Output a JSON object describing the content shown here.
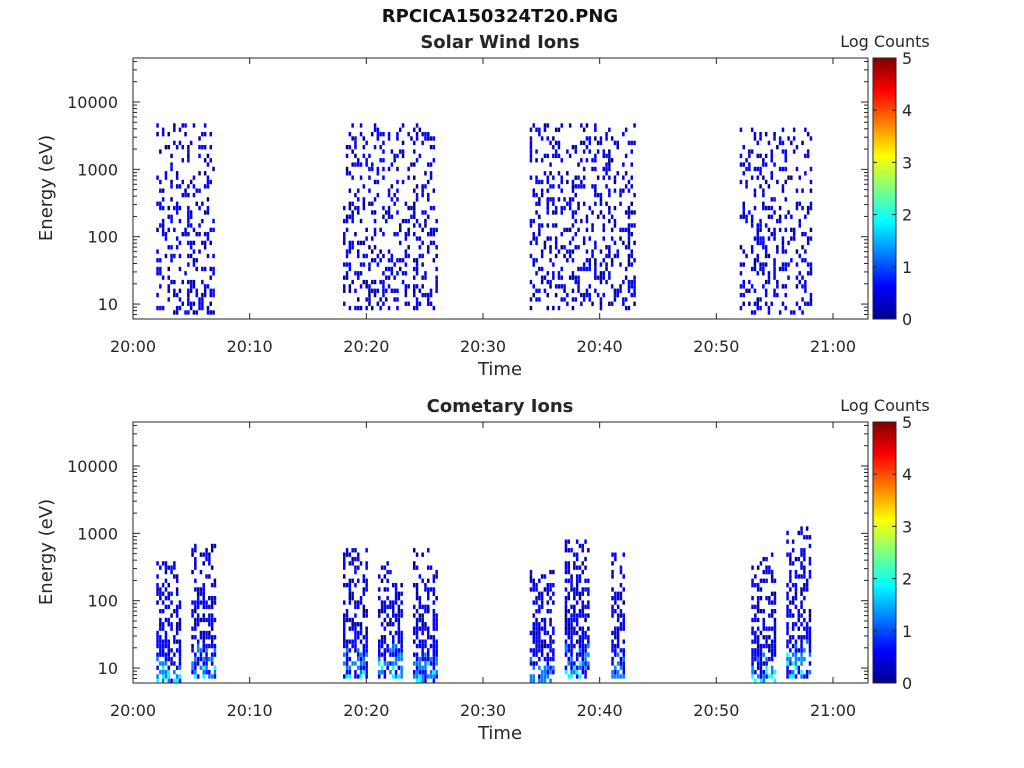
{
  "figure": {
    "title": "RPCICA150324T20.PNG"
  },
  "colormap": [
    "#00008f",
    "#0000ff",
    "#0080ff",
    "#00ffff",
    "#80ff80",
    "#ffff00",
    "#ff8000",
    "#ff0000",
    "#800000"
  ],
  "chart_data": [
    {
      "type": "heatmap",
      "title": "Solar Wind Ions",
      "xlabel": "Time",
      "ylabel": "Energy (eV)",
      "yscale": "log",
      "xlim": [
        "20:00",
        "21:03"
      ],
      "ylim": [
        6,
        45000
      ],
      "xticks": [
        "20:00",
        "20:10",
        "20:20",
        "20:30",
        "20:40",
        "20:50",
        "21:00"
      ],
      "yticks": [
        "10",
        "100",
        "1000",
        "10000"
      ],
      "colorbar": {
        "label": "Log Counts",
        "range": [
          0,
          5
        ],
        "ticks": [
          "0",
          "1",
          "2",
          "3",
          "4",
          "5"
        ]
      },
      "bursts": [
        {
          "start": "20:02",
          "end": "20:07",
          "energy_min": 7,
          "energy_max": 4500,
          "peak_log_counts": 1.2
        },
        {
          "start": "20:18",
          "end": "20:26",
          "energy_min": 8,
          "energy_max": 4700,
          "peak_log_counts": 1.3
        },
        {
          "start": "20:34",
          "end": "20:43",
          "energy_min": 8,
          "energy_max": 4600,
          "peak_log_counts": 1.3
        },
        {
          "start": "20:52",
          "end": "20:58",
          "energy_min": 7,
          "energy_max": 4300,
          "peak_log_counts": 1.2
        }
      ]
    },
    {
      "type": "heatmap",
      "title": "Cometary Ions",
      "xlabel": "Time",
      "ylabel": "Energy (eV)",
      "yscale": "log",
      "xlim": [
        "20:00",
        "21:03"
      ],
      "ylim": [
        6,
        45000
      ],
      "xticks": [
        "20:00",
        "20:10",
        "20:20",
        "20:30",
        "20:40",
        "20:50",
        "21:00"
      ],
      "yticks": [
        "10",
        "100",
        "1000",
        "10000"
      ],
      "colorbar": {
        "label": "Log Counts",
        "range": [
          0,
          5
        ],
        "ticks": [
          "0",
          "1",
          "2",
          "3",
          "4",
          "5"
        ]
      },
      "bursts": [
        {
          "start": "20:02",
          "end": "20:04",
          "energy_min": 6,
          "energy_max": 380,
          "peak_log_counts": 1.9
        },
        {
          "start": "20:05",
          "end": "20:07",
          "energy_min": 7,
          "energy_max": 650,
          "peak_log_counts": 1.7
        },
        {
          "start": "20:18",
          "end": "20:20",
          "energy_min": 7,
          "energy_max": 560,
          "peak_log_counts": 1.8
        },
        {
          "start": "20:21",
          "end": "20:23",
          "energy_min": 7,
          "energy_max": 400,
          "peak_log_counts": 1.8
        },
        {
          "start": "20:24",
          "end": "20:26",
          "energy_min": 6,
          "energy_max": 560,
          "peak_log_counts": 1.6
        },
        {
          "start": "20:34",
          "end": "20:36",
          "energy_min": 6,
          "energy_max": 300,
          "peak_log_counts": 1.3
        },
        {
          "start": "20:37",
          "end": "20:39",
          "energy_min": 7,
          "energy_max": 800,
          "peak_log_counts": 1.7
        },
        {
          "start": "20:41",
          "end": "20:42",
          "energy_min": 7,
          "energy_max": 500,
          "peak_log_counts": 1.3
        },
        {
          "start": "20:53",
          "end": "20:55",
          "energy_min": 6,
          "energy_max": 500,
          "peak_log_counts": 1.7
        },
        {
          "start": "20:56",
          "end": "20:58",
          "energy_min": 7,
          "energy_max": 1300,
          "peak_log_counts": 1.8
        }
      ]
    }
  ]
}
